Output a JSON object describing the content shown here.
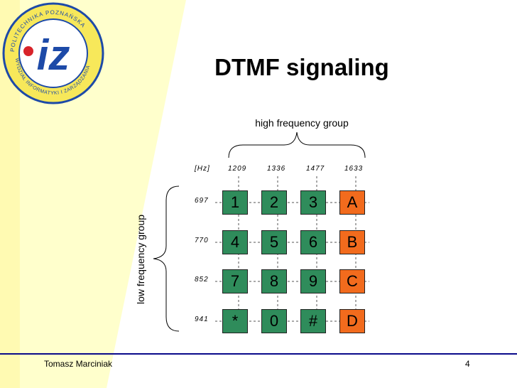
{
  "slide": {
    "title": "DTMF signaling",
    "high_group_label": "high frequency group",
    "low_group_label": "low frequency group",
    "unit_label": "[Hz]",
    "high_frequencies": [
      "1209",
      "1336",
      "1477",
      "1633"
    ],
    "low_frequencies": [
      "697",
      "770",
      "852",
      "941"
    ],
    "keypad": [
      [
        "1",
        "2",
        "3",
        "A"
      ],
      [
        "4",
        "5",
        "6",
        "B"
      ],
      [
        "7",
        "8",
        "9",
        "C"
      ],
      [
        "*",
        "0",
        "#",
        "D"
      ]
    ],
    "colors": {
      "digit_key": "#2f8c5b",
      "letter_key": "#f26b1d",
      "footer_line": "#0a0a8a"
    }
  },
  "logo": {
    "ring_text_top": "POLITECHNIKA POZNAŃSKA",
    "ring_text_bottom": "WYDZIAŁ INFORMATYKI I ZARZĄDZANIA",
    "monogram": "iz"
  },
  "footer": {
    "author": "Tomasz Marciniak",
    "page_number": "4"
  }
}
